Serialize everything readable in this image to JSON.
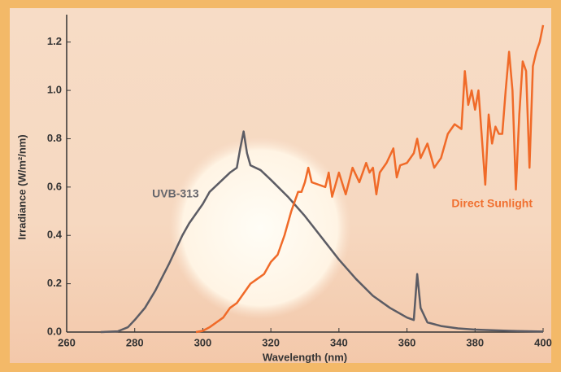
{
  "chart_data": {
    "type": "line",
    "xlabel": "Wavelength (nm)",
    "ylabel": "Irradiance (W/m²/nm)",
    "xlim": [
      260,
      400
    ],
    "ylim": [
      0,
      1.3
    ],
    "xticks": [
      260,
      280,
      300,
      320,
      340,
      360,
      380,
      400
    ],
    "yticks": [
      {
        "value": 0,
        "label": "0.0"
      },
      0.2,
      0.4,
      0.6,
      0.8,
      {
        "value": 1,
        "label": "1.0"
      },
      1.2
    ],
    "annotations": [
      {
        "text": "UVB-313",
        "color": "#66666c",
        "x": 292,
        "y": 0.57
      },
      {
        "text": "Direct Sunlight",
        "color": "#f07030",
        "x": 385,
        "y": 0.53
      }
    ],
    "series": [
      {
        "name": "UVB-313",
        "color": "#5c5c64",
        "x": [
          270,
          275,
          278,
          280,
          283,
          286,
          290,
          294,
          296,
          300,
          302,
          305,
          308,
          310,
          311,
          312,
          313,
          314,
          317,
          320,
          325,
          330,
          335,
          340,
          345,
          350,
          355,
          360,
          362,
          363,
          364,
          366,
          370,
          375,
          380,
          390,
          400
        ],
        "values": [
          0,
          0.003,
          0.02,
          0.05,
          0.1,
          0.17,
          0.28,
          0.4,
          0.45,
          0.53,
          0.58,
          0.62,
          0.66,
          0.68,
          0.76,
          0.83,
          0.74,
          0.69,
          0.67,
          0.63,
          0.56,
          0.48,
          0.39,
          0.3,
          0.22,
          0.15,
          0.1,
          0.06,
          0.05,
          0.24,
          0.1,
          0.04,
          0.025,
          0.015,
          0.01,
          0.005,
          0.002
        ]
      },
      {
        "name": "Direct Sunlight",
        "color": "#f06a28",
        "x": [
          298,
          300,
          302,
          304,
          306,
          308,
          310,
          312,
          314,
          316,
          318,
          320,
          322,
          324,
          326,
          328,
          329,
          330,
          331,
          332,
          334,
          336,
          337,
          338,
          340,
          342,
          344,
          346,
          348,
          349,
          350,
          351,
          352,
          354,
          356,
          357,
          358,
          360,
          362,
          363,
          364,
          366,
          368,
          370,
          372,
          374,
          376,
          377,
          378,
          379,
          380,
          381,
          383,
          384,
          385,
          386,
          387,
          388,
          389,
          390,
          391,
          392,
          393,
          394,
          395,
          396,
          397,
          398,
          399,
          400
        ],
        "values": [
          0,
          0.005,
          0.02,
          0.04,
          0.06,
          0.1,
          0.12,
          0.16,
          0.2,
          0.22,
          0.24,
          0.29,
          0.32,
          0.4,
          0.5,
          0.58,
          0.58,
          0.62,
          0.68,
          0.62,
          0.61,
          0.6,
          0.66,
          0.56,
          0.66,
          0.57,
          0.68,
          0.62,
          0.7,
          0.66,
          0.68,
          0.57,
          0.66,
          0.7,
          0.76,
          0.64,
          0.69,
          0.7,
          0.74,
          0.8,
          0.72,
          0.78,
          0.68,
          0.72,
          0.82,
          0.86,
          0.84,
          1.08,
          0.94,
          1.0,
          0.92,
          1.0,
          0.61,
          0.9,
          0.78,
          0.85,
          0.82,
          0.82,
          1.0,
          1.16,
          1.0,
          0.59,
          0.9,
          1.12,
          1.08,
          0.68,
          1.1,
          1.16,
          1.2,
          1.27
        ]
      }
    ]
  }
}
